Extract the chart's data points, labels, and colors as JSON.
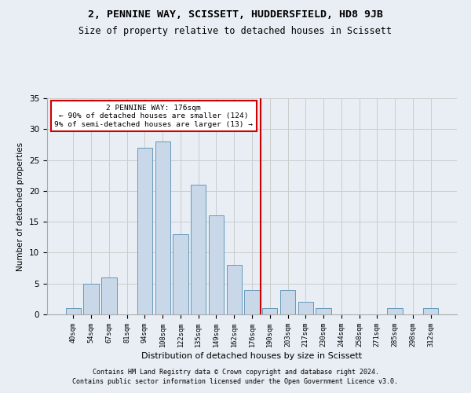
{
  "title1": "2, PENNINE WAY, SCISSETT, HUDDERSFIELD, HD8 9JB",
  "title2": "Size of property relative to detached houses in Scissett",
  "xlabel": "Distribution of detached houses by size in Scissett",
  "ylabel": "Number of detached properties",
  "categories": [
    "40sqm",
    "54sqm",
    "67sqm",
    "81sqm",
    "94sqm",
    "108sqm",
    "122sqm",
    "135sqm",
    "149sqm",
    "162sqm",
    "176sqm",
    "190sqm",
    "203sqm",
    "217sqm",
    "230sqm",
    "244sqm",
    "258sqm",
    "271sqm",
    "285sqm",
    "298sqm",
    "312sqm"
  ],
  "values": [
    1,
    5,
    6,
    0,
    27,
    28,
    13,
    21,
    16,
    8,
    4,
    1,
    4,
    2,
    1,
    0,
    0,
    0,
    1,
    0,
    1
  ],
  "bar_color": "#c8d8e8",
  "bar_edge_color": "#6699bb",
  "marker_index": 10,
  "annotation_text": "2 PENNINE WAY: 176sqm\n← 90% of detached houses are smaller (124)\n9% of semi-detached houses are larger (13) →",
  "annotation_box_color": "#ffffff",
  "annotation_border_color": "#cc0000",
  "vline_color": "#cc0000",
  "grid_color": "#cccccc",
  "ylim": [
    0,
    35
  ],
  "yticks": [
    0,
    5,
    10,
    15,
    20,
    25,
    30,
    35
  ],
  "footer1": "Contains HM Land Registry data © Crown copyright and database right 2024.",
  "footer2": "Contains public sector information licensed under the Open Government Licence v3.0.",
  "bg_color": "#e8eef4",
  "plot_bg_color": "#e8eef4"
}
